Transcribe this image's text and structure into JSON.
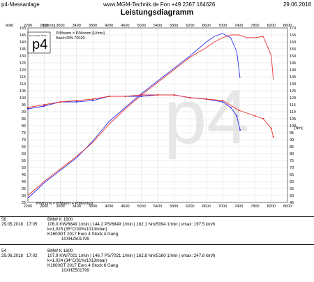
{
  "header": {
    "left": "p4-Messanlage",
    "center": "www.MGM-Technik.de Fon +49 2367 184626",
    "right": "29.06.2018",
    "title": "Leistungsdiagramm"
  },
  "plot": {
    "left_unit_kw": "[kW]",
    "x_unit_top": "[U/min]",
    "right_unit_nm": "[Nm]",
    "legend_top": [
      "P/Mnorm = P/Mnorm [U/min]",
      "Aiech DIN 70020"
    ],
    "legend_bottom": "P/Mnorm = P/Mgem + P/Mverlust",
    "logo_text": "p4",
    "logo_sub": "Messanlage MGM"
  },
  "chart_data": {
    "type": "line",
    "title": "Leistungsdiagramm",
    "x_ticks": [
      2200,
      2600,
      3000,
      3400,
      3800,
      4200,
      4600,
      5000,
      5400,
      5800,
      6200,
      6600,
      7000,
      7400,
      7800,
      8200,
      8600
    ],
    "xlim": [
      2200,
      8600
    ],
    "y_left_ticks": [
      25,
      30,
      35,
      40,
      45,
      50,
      55,
      60,
      65,
      70,
      75,
      80,
      85,
      90,
      95,
      100,
      105,
      110,
      115,
      120,
      125,
      130,
      135,
      140,
      145,
      150
    ],
    "y_left_lim": [
      25,
      150
    ],
    "y_left_label": "[kW]",
    "y_right_ticks": [
      45,
      50,
      55,
      60,
      65,
      70,
      75,
      80,
      85,
      90,
      95,
      100,
      105,
      110,
      115,
      120,
      125,
      130,
      135,
      140,
      145,
      150,
      155,
      160,
      165,
      170
    ],
    "y_right_lim": [
      45,
      170
    ],
    "y_right_label": "[Nm]",
    "series": [
      {
        "run": "56",
        "kind": "power",
        "color": "#2e2ef0",
        "x": [
          2200,
          2600,
          3000,
          3400,
          3800,
          4200,
          4600,
          5000,
          5400,
          5800,
          6200,
          6600,
          6800,
          7000,
          7200,
          7350,
          7430
        ],
        "y": [
          28,
          39,
          48,
          57,
          69,
          83,
          93,
          103,
          112,
          121,
          130,
          140,
          144,
          146,
          143,
          133,
          114
        ]
      },
      {
        "run": "54",
        "kind": "power",
        "color": "#e83232",
        "x": [
          2200,
          2600,
          3000,
          3400,
          3800,
          4200,
          4600,
          5000,
          5400,
          5800,
          6200,
          6600,
          6800,
          7000,
          7200,
          7400,
          7600,
          7800,
          8000,
          8200,
          8250
        ],
        "y": [
          30,
          40,
          49,
          58,
          68,
          81,
          92,
          102,
          111,
          120,
          129,
          136,
          140,
          143,
          145,
          145,
          143,
          143,
          144,
          130,
          113
        ]
      },
      {
        "run": "56",
        "kind": "torque",
        "color": "#2e2ef0",
        "x": [
          2200,
          2600,
          3000,
          3400,
          3800,
          4200,
          4600,
          5000,
          5400,
          5800,
          6200,
          6600,
          7000,
          7200,
          7350,
          7430
        ],
        "y": [
          112,
          114,
          117,
          117,
          118,
          121,
          121,
          121,
          122,
          122,
          120,
          119,
          117,
          113,
          107,
          97
        ]
      },
      {
        "run": "54",
        "kind": "torque",
        "color": "#e83232",
        "x": [
          2200,
          2600,
          3000,
          3400,
          3800,
          4200,
          4600,
          5000,
          5400,
          5800,
          6200,
          6600,
          7000,
          7400,
          7800,
          8000,
          8200,
          8250
        ],
        "y": [
          113,
          115,
          117,
          118,
          119,
          121,
          121,
          122,
          122,
          122,
          120,
          119,
          118,
          111,
          107,
          105,
          98,
          92
        ]
      }
    ]
  },
  "runs": [
    {
      "id": "56",
      "date": "29.05.2018",
      "time": "17:05",
      "vehicle": "BMW K 1600",
      "line1": "106.0 KW/6849 1/min | 144.2 PS/6849 1/min | 162.1 Nm/5094 1/min | vmax: 197.5 km/h",
      "line2": "k=1,025 (35°C/30%/1013mbar)",
      "line3": "K1600GT 2017 Euro 4 Stock 4 Gang",
      "line4": "10XHZ501799"
    },
    {
      "id": "54",
      "date": "29.06.2018",
      "time": "17:02",
      "vehicle": "BMW K 1600",
      "line1": "107.9 KW/7021 1/min | 146.7 PS/7021 1/min | 162.8 Nm/5160 1/min | vmax: 247.8 km/h",
      "line2": "k=1,024 (34°C/31%/1013mbar)",
      "line3": "K1600GT 2017 Euro 4 Stock 6 Gang",
      "line4": "10XHZ501799"
    }
  ]
}
